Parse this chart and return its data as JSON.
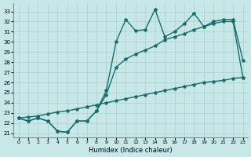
{
  "xlabel": "Humidex (Indice chaleur)",
  "background_color": "#c8e8e8",
  "grid_color": "#a8d0d0",
  "line_color": "#1a6b6b",
  "xlim": [
    -0.5,
    23.5
  ],
  "ylim": [
    20.6,
    33.8
  ],
  "xticks": [
    0,
    1,
    2,
    3,
    4,
    5,
    6,
    7,
    8,
    9,
    10,
    11,
    12,
    13,
    14,
    15,
    16,
    17,
    18,
    19,
    20,
    21,
    22,
    23
  ],
  "yticks": [
    21,
    22,
    23,
    24,
    25,
    26,
    27,
    28,
    29,
    30,
    31,
    32,
    33
  ],
  "curve1_y": [
    22.5,
    22.2,
    22.5,
    22.2,
    21.2,
    21.1,
    22.2,
    22.2,
    23.2,
    25.2,
    30.0,
    32.2,
    31.1,
    31.2,
    33.2,
    30.5,
    31.0,
    31.8,
    32.8,
    31.5,
    32.0,
    32.2,
    32.2,
    28.2
  ],
  "curve2_y": [
    22.5,
    22.2,
    22.5,
    22.2,
    21.2,
    21.1,
    22.2,
    22.2,
    23.2,
    24.8,
    27.5,
    28.3,
    28.8,
    29.2,
    29.6,
    30.2,
    30.5,
    30.8,
    31.2,
    31.5,
    31.8,
    32.0,
    32.0,
    26.5
  ],
  "curve3_y": [
    22.5,
    22.6,
    22.7,
    22.9,
    23.1,
    23.2,
    23.4,
    23.6,
    23.8,
    24.0,
    24.2,
    24.4,
    24.6,
    24.8,
    25.0,
    25.2,
    25.4,
    25.6,
    25.8,
    26.0,
    26.1,
    26.2,
    26.4,
    26.5
  ],
  "marker_size": 3,
  "line_width": 1.0
}
